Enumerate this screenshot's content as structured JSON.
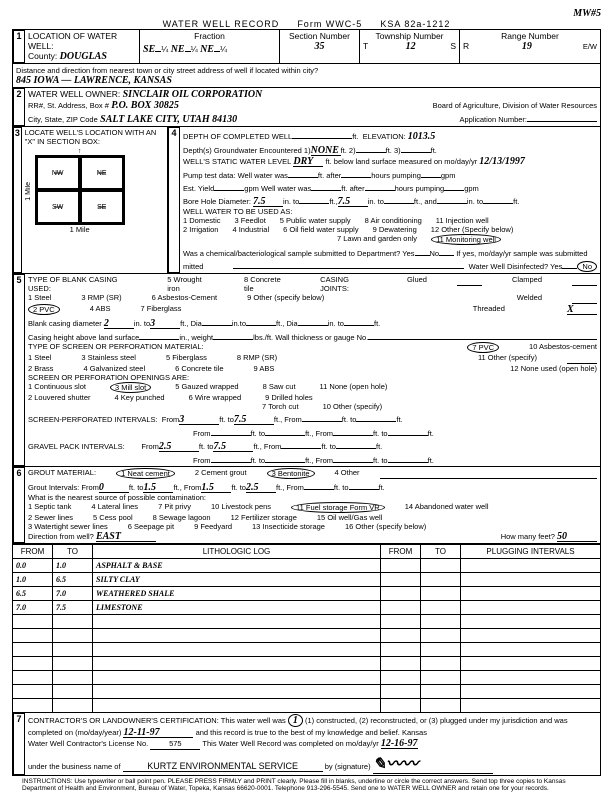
{
  "header": {
    "title": "WATER WELL RECORD",
    "form": "Form WWC-5",
    "ksa": "KSA 82a-1212",
    "mw": "MW#5"
  },
  "section1": {
    "label": "LOCATION OF WATER WELL:",
    "county_label": "County:",
    "county": "DOUGLAS",
    "fraction_label": "Fraction",
    "f1a": "SE",
    "f1b": "¼",
    "f2a": "NE",
    "f2b": "¼",
    "f3a": "NE",
    "f3b": "¼",
    "sec_label": "Section Number",
    "sec": "35",
    "twp_label": "Township Number",
    "twp": "12",
    "twp_dir": "S",
    "rng_label": "Range Number",
    "rng": "19",
    "rng_dir": "E/W",
    "dist_label": "Distance and direction from nearest town or city street address of well if located within city?",
    "addr": "845 IOWA — LAWRENCE, KANSAS"
  },
  "section2": {
    "owner_label": "WATER WELL OWNER:",
    "owner": "SINCLAIR OIL CORPORATION",
    "rr_label": "RR#, St. Address, Box #",
    "rr": "P.O. BOX 30825",
    "citystate_label": "City, State, ZIP Code",
    "citystate": "SALT LAKE CITY, UTAH 84130",
    "board": "Board of Agriculture, Division of Water Resources",
    "appnum_label": "Application Number:"
  },
  "section3": {
    "label": "LOCATE WELL'S LOCATION WITH AN \"X\" IN SECTION BOX:",
    "mile": "1 Mile",
    "nw": "NW",
    "ne": "NE",
    "sw": "SW",
    "se": "SE",
    "n": "N",
    "s": "S",
    "w": "W",
    "e": "E"
  },
  "section4": {
    "label": "DEPTH OF COMPLETED WELL",
    "depth_unit": "ft.",
    "elevation_label": "ELEVATION:",
    "elevation": "1013.5",
    "depths_label": "Depth(s) Groundwater Encountered",
    "depths": "NONE",
    "static_label": "WELL'S STATIC WATER LEVEL",
    "static": "DRY",
    "static_unit": "ft. below land surface measured on mo/day/yr",
    "static_date": "12/13/1997",
    "pump_label": "Pump test data:  Well water was",
    "gpm": "gpm",
    "after": "ft. after",
    "hours": "hours pumping",
    "est_label": "Est. Yield",
    "est_unit": "gpm   Well water was",
    "bore_label": "Bore Hole Diameter:",
    "bore1": "7.5",
    "boreto": "in. to",
    "bore2": "7.5",
    "boreand": "ft., and",
    "use_label": "WELL WATER TO BE USED AS:",
    "uses": [
      "1 Domestic",
      "2 Irrigation",
      "3 Feedlot",
      "4 Industrial",
      "5 Public water supply",
      "6 Oil field water supply",
      "7 Lawn and garden only",
      "8 Air conditioning",
      "9 Dewatering",
      "11 Injection well",
      "12 Other (Specify below)"
    ],
    "use_circled": "11 Monitoring well",
    "chembact": "Was a chemical/bacteriological sample submitted to Department?  Yes",
    "no": "No",
    "ifyes": "If yes, mo/day/yr sample was submitted",
    "disinfect": "Water Well Disinfected?  Yes"
  },
  "section5": {
    "label": "TYPE OF BLANK CASING USED:",
    "opts": [
      "1 Steel",
      "3 RMP (SR)",
      "5 Wrought iron",
      "6 Asbestos-Cement",
      "7 Fiberglass",
      "8 Concrete tile",
      "9 Other (specify below)",
      "4 ABS"
    ],
    "circled": "2 PVC",
    "joints_label": "CASING JOINTS:",
    "joints": [
      "Glued",
      "Welded",
      "Clamped"
    ],
    "threaded": "Threaded",
    "threaded_mark": "X",
    "blank_dia_label": "Blank casing diameter",
    "blank_dia": "2",
    "blank_dia_to": "in. to",
    "blank_dia2": "3",
    "blank_dia_unit": "ft., Dia",
    "in": "in.",
    "to": "to",
    "ft": "ft.",
    "ch_label": "Casing height above land surface",
    "ch_in": "in., weight",
    "ch_lbs": "lbs./ft. Wall thickness or gauge No.",
    "screen_label": "TYPE OF SCREEN OR PERFORATION MATERIAL:",
    "screen_circled": "7 PVC",
    "screen_opts": [
      "1 Steel",
      "2 Brass",
      "3 Stainless steel",
      "4 Galvanized steel",
      "5 Fiberglass",
      "6 Concrete tile",
      "8 RMP (SR)",
      "9 ABS",
      "10 Asbestos-cement",
      "11 Other (specify)",
      "12 None used (open hole)"
    ],
    "open_label": "SCREEN OR PERFORATION OPENINGS ARE:",
    "open_opts": [
      "1 Continuous slot",
      "2 Louvered shutter",
      "4 Key punched",
      "5 Gauzed wrapped",
      "6 Wire wrapped",
      "7 Torch cut",
      "8 Saw cut",
      "9 Drilled holes",
      "10 Other (specify)",
      "11 None (open hole)"
    ],
    "open_circled": "3 Mill slot",
    "sp_label": "SCREEN-PERFORATED INTERVALS:",
    "gp_label": "GRAVEL PACK INTERVALS:",
    "from": "From",
    "fto": "ft. to",
    "ftfrom": "ft., From",
    "sp_from1": "3",
    "sp_to1": "7.5",
    "gp_from1": "2.5",
    "gp_to1": "7.5"
  },
  "section6": {
    "label": "GROUT MATERIAL:",
    "opt1": "1 Neat cement",
    "opt2": "2 Cement grout",
    "opt3": "3 Bentonite",
    "opt4": "4 Other",
    "gi_label": "Grout Intervals:",
    "gi_from": "0",
    "gi_to": "1.5",
    "gi_from2": "1.5",
    "gi_to2": "2.5",
    "nearest_label": "What is the nearest source of possible contamination:",
    "cont_opts": [
      "1 Septic tank",
      "2 Sewer lines",
      "3 Watertight sewer lines",
      "4 Lateral lines",
      "5 Cess pool",
      "6 Seepage pit",
      "7 Pit privy",
      "8 Sewage lagoon",
      "9 Feedyard",
      "10 Livestock pens",
      "12 Fertilizer storage",
      "13 Insecticide storage",
      "14 Abandoned water well",
      "15 Oil well/Gas well",
      "16 Other (specify below)"
    ],
    "cont_circled": "11 Fuel storage Form VR",
    "dir_label": "Direction from well?",
    "dir": "EAST",
    "hm_label": "How many feet?",
    "hm": "50"
  },
  "litholog": {
    "cols": [
      "FROM",
      "TO",
      "LITHOLOGIC LOG",
      "FROM",
      "TO",
      "PLUGGING INTERVALS"
    ],
    "rows": [
      [
        "0.0",
        "1.0",
        "ASPHALT & BASE",
        "",
        "",
        ""
      ],
      [
        "1.0",
        "6.5",
        "SILTY CLAY",
        "",
        "",
        ""
      ],
      [
        "6.5",
        "7.0",
        "WEATHERED SHALE",
        "",
        "",
        ""
      ],
      [
        "7.0",
        "7.5",
        "LIMESTONE",
        "",
        "",
        ""
      ],
      [
        "",
        "",
        "",
        "",
        "",
        ""
      ],
      [
        "",
        "",
        "",
        "",
        "",
        ""
      ],
      [
        "",
        "",
        "",
        "",
        "",
        ""
      ],
      [
        "",
        "",
        "",
        "",
        "",
        ""
      ],
      [
        "",
        "",
        "",
        "",
        "",
        ""
      ],
      [
        "",
        "",
        "",
        "",
        "",
        ""
      ],
      [
        "",
        "",
        "",
        "",
        "",
        ""
      ]
    ]
  },
  "section7": {
    "cert": "CONTRACTOR'S OR LANDOWNER'S CERTIFICATION: This water well was",
    "opts": "(1) constructed, (2) reconstructed, or (3) plugged under my jurisdiction and was",
    "comp_label": "completed on (mo/day/year)",
    "comp": "12-11-97",
    "rec": "and this record is true to the best of my knowledge and belief. Kansas",
    "lic_label": "Water Well Contractor's License No.",
    "lic": "575",
    "rec2": "This Water Well Record was completed on mo/day/yr",
    "recdate": "12-16-97",
    "under": "under the business name of",
    "bus": "KURTZ ENVIRONMENTAL SERVICE",
    "by": "by (signature)"
  },
  "instructions": "INSTRUCTIONS: Use typewriter or ball point pen. PLEASE PRESS FIRMLY and PRINT clearly. Please fill in blanks, underline or circle the correct answers. Send top three copies to Kansas Department of Health and Environment, Bureau of Water, Topeka, Kansas 66620-0001. Telephone 913-296-5545. Send one to WATER WELL OWNER and retain one for your records."
}
